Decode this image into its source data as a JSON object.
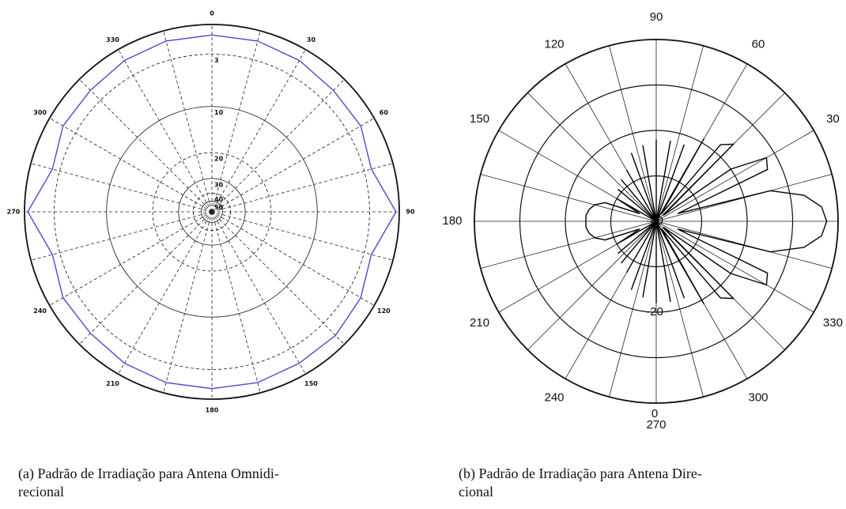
{
  "chart_data": [
    {
      "type": "polar",
      "theta_zero": "top",
      "theta_direction": "clockwise",
      "rscale": "log",
      "rlim": [
        0,
        50
      ],
      "rticks": [
        3,
        10,
        20,
        30,
        40,
        50
      ],
      "thetaticks": [
        0,
        30,
        60,
        90,
        120,
        150,
        180,
        210,
        240,
        270,
        300,
        330
      ],
      "theta": [
        0,
        15,
        30,
        45,
        60,
        75,
        90,
        105,
        120,
        135,
        150,
        165,
        180,
        195,
        210,
        225,
        240,
        255,
        270,
        285,
        300,
        315,
        330,
        345
      ],
      "series": [
        {
          "color": "#4a4ad0",
          "values": [
            1,
            1,
            1.2,
            1.5,
            1.5,
            2.2,
            0.3,
            2.2,
            1.5,
            1.2,
            1.2,
            1,
            1,
            1,
            1.2,
            1.5,
            1.5,
            2.2,
            0.3,
            2.2,
            1.5,
            1.5,
            1.2,
            1
          ]
        }
      ],
      "caption": [
        "(a) Padrão de Irradiação para Antena Omnidi-",
        "recional"
      ]
    },
    {
      "type": "polar",
      "theta_zero": "right",
      "theta_direction": "counterclockwise",
      "rscale": "linear",
      "rlim": [
        -40,
        0
      ],
      "rticks": [
        -40,
        -20,
        0
      ],
      "rminor": [
        -30,
        -10
      ],
      "thetaticks": [
        0,
        30,
        60,
        90,
        120,
        150,
        180,
        210,
        240,
        270,
        300,
        330
      ],
      "theta": [
        0,
        5,
        10,
        15,
        20,
        25,
        30,
        35,
        40,
        45,
        50,
        55,
        60,
        65,
        70,
        75,
        80,
        85,
        90,
        95,
        100,
        105,
        110,
        115,
        120,
        125,
        130,
        135,
        140,
        145,
        150,
        155,
        160,
        165,
        170,
        175,
        180,
        185,
        190,
        195,
        200,
        205,
        210,
        215,
        220,
        225,
        230,
        235,
        240,
        245,
        250,
        255,
        260,
        265,
        270,
        275,
        280,
        285,
        290,
        295,
        300,
        305,
        310,
        315,
        320,
        325,
        330,
        335,
        340,
        345,
        350,
        355
      ],
      "series": [
        {
          "color": "#000000",
          "values": [
            -2.5,
            -3.5,
            -7,
            -14,
            -35,
            -13,
            -12,
            -20,
            -38,
            -16,
            -18,
            -38,
            -19,
            -40,
            -22,
            -40,
            -22,
            -40,
            -22,
            -40,
            -23,
            -40,
            -24,
            -40,
            -27,
            -40,
            -28,
            -40,
            -29,
            -40,
            -30,
            -36,
            -28,
            -26,
            -25,
            -24.5,
            -24.5,
            -24.5,
            -25,
            -26,
            -28,
            -36,
            -30,
            -40,
            -29,
            -40,
            -28,
            -40,
            -27,
            -40,
            -24,
            -40,
            -23,
            -40,
            -22,
            -40,
            -22,
            -40,
            -22,
            -40,
            -19,
            -38,
            -18,
            -16,
            -38,
            -20,
            -12,
            -13,
            -35,
            -14,
            -7,
            -3.5
          ]
        }
      ],
      "caption": [
        "(b) Padrão de Irradiação para Antena Dire-",
        "cional"
      ]
    }
  ]
}
